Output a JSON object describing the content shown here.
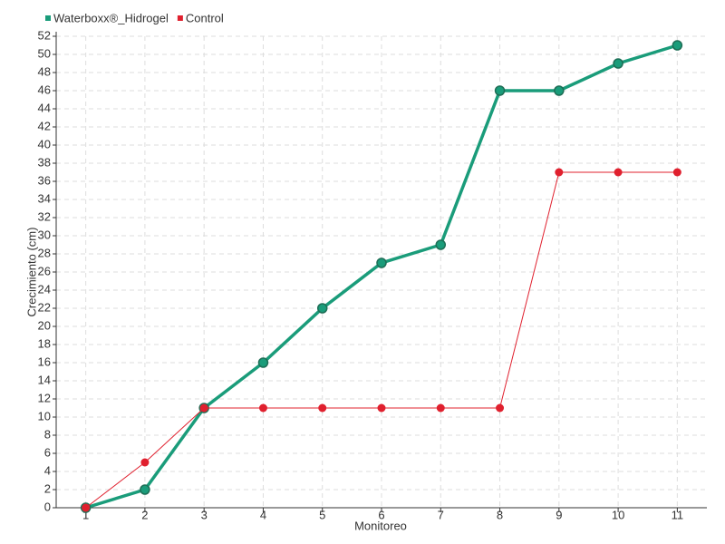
{
  "chart_data": {
    "type": "line",
    "xlabel": "Monitoreo",
    "ylabel": "Crecimiento (cm)",
    "categories": [
      "1",
      "2",
      "3",
      "4",
      "5",
      "6",
      "7",
      "8",
      "9",
      "10",
      "11"
    ],
    "series": [
      {
        "name": "Waterboxx®_Hidrogel",
        "color": "#1a9c7a",
        "values": [
          0,
          2,
          11,
          16,
          22,
          27,
          29,
          46,
          46,
          49,
          51
        ]
      },
      {
        "name": "Control",
        "color": "#e0202e",
        "values": [
          0,
          5,
          11,
          11,
          11,
          11,
          11,
          11,
          37,
          37,
          37
        ]
      }
    ],
    "ylim": [
      0,
      52
    ],
    "yticks": [
      0,
      2,
      4,
      6,
      8,
      10,
      12,
      14,
      16,
      18,
      20,
      22,
      24,
      26,
      28,
      30,
      32,
      34,
      36,
      38,
      40,
      42,
      44,
      46,
      48,
      50,
      52
    ],
    "grid": true,
    "legend": "top-left"
  }
}
